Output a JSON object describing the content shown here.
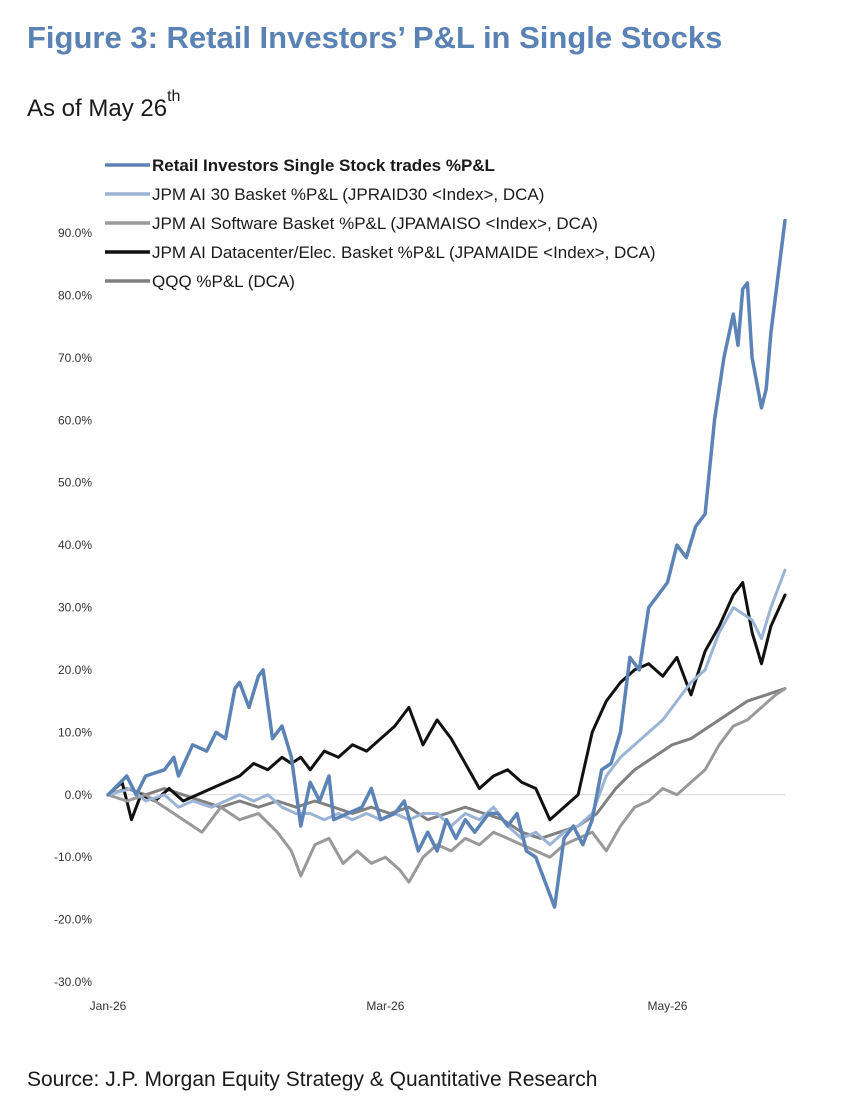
{
  "figure": {
    "title": "Figure 3: Retail Investors’ P&L in Single Stocks",
    "subtitle": "As of May 26",
    "subtitle_sup": "th",
    "source": "Source: J.P. Morgan Equity Strategy & Quantitative Research"
  },
  "chart_data": {
    "type": "line",
    "title": "",
    "xlabel": "",
    "ylabel": "",
    "xlim": [
      "2026-01-02",
      "2026-05-26"
    ],
    "ylim": [
      -30,
      90
    ],
    "yticks": [
      -30,
      -20,
      -10,
      0,
      10,
      20,
      30,
      40,
      50,
      60,
      70,
      80,
      90
    ],
    "ytick_labels": [
      "-30.0%",
      "-20.0%",
      "-10.0%",
      "0.0%",
      "10.0%",
      "20.0%",
      "30.0%",
      "40.0%",
      "50.0%",
      "60.0%",
      "70.0%",
      "80.0%",
      "90.0%"
    ],
    "xticks": [
      "2026-01-02",
      "2026-03-02",
      "2026-05-01"
    ],
    "xtick_labels": [
      "Jan-26",
      "Mar-26",
      "May-26"
    ],
    "grid": false,
    "zero_line": true,
    "legend": "top-left",
    "series": [
      {
        "name": "Retail Investors Single Stock trades %P&L",
        "color": "#5b83b5",
        "width": 3.5,
        "bold": true,
        "points": [
          [
            "2026-01-02",
            0
          ],
          [
            "2026-01-06",
            3
          ],
          [
            "2026-01-08",
            0
          ],
          [
            "2026-01-10",
            3
          ],
          [
            "2026-01-14",
            4
          ],
          [
            "2026-01-16",
            6
          ],
          [
            "2026-01-17",
            3
          ],
          [
            "2026-01-20",
            8
          ],
          [
            "2026-01-23",
            7
          ],
          [
            "2026-01-25",
            10
          ],
          [
            "2026-01-27",
            9
          ],
          [
            "2026-01-29",
            17
          ],
          [
            "2026-01-30",
            18
          ],
          [
            "2026-02-01",
            14
          ],
          [
            "2026-02-03",
            19
          ],
          [
            "2026-02-04",
            20
          ],
          [
            "2026-02-06",
            9
          ],
          [
            "2026-02-08",
            11
          ],
          [
            "2026-02-10",
            6
          ],
          [
            "2026-02-12",
            -5
          ],
          [
            "2026-02-14",
            2
          ],
          [
            "2026-02-16",
            -1
          ],
          [
            "2026-02-18",
            3
          ],
          [
            "2026-02-19",
            -4
          ],
          [
            "2026-02-22",
            -3
          ],
          [
            "2026-02-25",
            -2
          ],
          [
            "2026-02-27",
            1
          ],
          [
            "2026-03-01",
            -4
          ],
          [
            "2026-03-04",
            -3
          ],
          [
            "2026-03-06",
            -1
          ],
          [
            "2026-03-09",
            -9
          ],
          [
            "2026-03-11",
            -6
          ],
          [
            "2026-03-13",
            -9
          ],
          [
            "2026-03-15",
            -4
          ],
          [
            "2026-03-17",
            -7
          ],
          [
            "2026-03-19",
            -4
          ],
          [
            "2026-03-21",
            -6
          ],
          [
            "2026-03-24",
            -3
          ],
          [
            "2026-03-26",
            -3
          ],
          [
            "2026-03-28",
            -5
          ],
          [
            "2026-03-30",
            -3
          ],
          [
            "2026-04-01",
            -9
          ],
          [
            "2026-04-03",
            -10
          ],
          [
            "2026-04-05",
            -14
          ],
          [
            "2026-04-07",
            -18
          ],
          [
            "2026-04-09",
            -7
          ],
          [
            "2026-04-11",
            -5
          ],
          [
            "2026-04-13",
            -8
          ],
          [
            "2026-04-15",
            -4
          ],
          [
            "2026-04-17",
            4
          ],
          [
            "2026-04-19",
            5
          ],
          [
            "2026-04-21",
            10
          ],
          [
            "2026-04-23",
            22
          ],
          [
            "2026-04-25",
            20
          ],
          [
            "2026-04-27",
            30
          ],
          [
            "2026-04-29",
            32
          ],
          [
            "2026-05-01",
            34
          ],
          [
            "2026-05-03",
            40
          ],
          [
            "2026-05-05",
            38
          ],
          [
            "2026-05-07",
            43
          ],
          [
            "2026-05-09",
            45
          ],
          [
            "2026-05-11",
            60
          ],
          [
            "2026-05-13",
            70
          ],
          [
            "2026-05-15",
            77
          ],
          [
            "2026-05-16",
            72
          ],
          [
            "2026-05-17",
            81
          ],
          [
            "2026-05-18",
            82
          ],
          [
            "2026-05-19",
            70
          ],
          [
            "2026-05-21",
            62
          ],
          [
            "2026-05-22",
            65
          ],
          [
            "2026-05-23",
            74
          ],
          [
            "2026-05-26",
            92
          ]
        ]
      },
      {
        "name": "JPM AI 30 Basket %P&L (JPRAID30 <Index>, DCA)",
        "color": "#9bb4d6",
        "width": 3,
        "bold": false,
        "points": [
          [
            "2026-01-02",
            0
          ],
          [
            "2026-01-07",
            1
          ],
          [
            "2026-01-10",
            -1
          ],
          [
            "2026-01-14",
            0
          ],
          [
            "2026-01-17",
            -2
          ],
          [
            "2026-01-20",
            -1
          ],
          [
            "2026-01-24",
            -2
          ],
          [
            "2026-01-27",
            -1
          ],
          [
            "2026-01-30",
            0
          ],
          [
            "2026-02-02",
            -1
          ],
          [
            "2026-02-05",
            0
          ],
          [
            "2026-02-08",
            -2
          ],
          [
            "2026-02-11",
            -3
          ],
          [
            "2026-02-14",
            -3
          ],
          [
            "2026-02-17",
            -4
          ],
          [
            "2026-02-20",
            -3
          ],
          [
            "2026-02-23",
            -4
          ],
          [
            "2026-02-26",
            -3
          ],
          [
            "2026-03-01",
            -4
          ],
          [
            "2026-03-04",
            -3
          ],
          [
            "2026-03-07",
            -4
          ],
          [
            "2026-03-10",
            -3
          ],
          [
            "2026-03-13",
            -3
          ],
          [
            "2026-03-16",
            -5
          ],
          [
            "2026-03-19",
            -3
          ],
          [
            "2026-03-22",
            -4
          ],
          [
            "2026-03-25",
            -2
          ],
          [
            "2026-03-28",
            -5
          ],
          [
            "2026-03-31",
            -7
          ],
          [
            "2026-04-03",
            -6
          ],
          [
            "2026-04-06",
            -8
          ],
          [
            "2026-04-09",
            -6
          ],
          [
            "2026-04-12",
            -5
          ],
          [
            "2026-04-15",
            -3
          ],
          [
            "2026-04-18",
            3
          ],
          [
            "2026-04-21",
            6
          ],
          [
            "2026-04-24",
            8
          ],
          [
            "2026-04-27",
            10
          ],
          [
            "2026-04-30",
            12
          ],
          [
            "2026-05-03",
            15
          ],
          [
            "2026-05-06",
            18
          ],
          [
            "2026-05-09",
            20
          ],
          [
            "2026-05-12",
            26
          ],
          [
            "2026-05-15",
            30
          ],
          [
            "2026-05-17",
            29
          ],
          [
            "2026-05-19",
            28
          ],
          [
            "2026-05-21",
            25
          ],
          [
            "2026-05-23",
            30
          ],
          [
            "2026-05-26",
            36
          ]
        ]
      },
      {
        "name": "JPM AI Software Basket %P&L (JPAMAISO <Index>, DCA)",
        "color": "#999999",
        "width": 3,
        "bold": false,
        "points": [
          [
            "2026-01-02",
            0
          ],
          [
            "2026-01-06",
            -1
          ],
          [
            "2026-01-10",
            0
          ],
          [
            "2026-01-14",
            -2
          ],
          [
            "2026-01-18",
            -4
          ],
          [
            "2026-01-22",
            -6
          ],
          [
            "2026-01-26",
            -2
          ],
          [
            "2026-01-30",
            -4
          ],
          [
            "2026-02-03",
            -3
          ],
          [
            "2026-02-07",
            -6
          ],
          [
            "2026-02-10",
            -9
          ],
          [
            "2026-02-12",
            -13
          ],
          [
            "2026-02-15",
            -8
          ],
          [
            "2026-02-18",
            -7
          ],
          [
            "2026-02-21",
            -11
          ],
          [
            "2026-02-24",
            -9
          ],
          [
            "2026-02-27",
            -11
          ],
          [
            "2026-03-02",
            -10
          ],
          [
            "2026-03-05",
            -12
          ],
          [
            "2026-03-07",
            -14
          ],
          [
            "2026-03-10",
            -10
          ],
          [
            "2026-03-13",
            -8
          ],
          [
            "2026-03-16",
            -9
          ],
          [
            "2026-03-19",
            -7
          ],
          [
            "2026-03-22",
            -8
          ],
          [
            "2026-03-25",
            -6
          ],
          [
            "2026-03-28",
            -7
          ],
          [
            "2026-03-31",
            -8
          ],
          [
            "2026-04-03",
            -9
          ],
          [
            "2026-04-06",
            -10
          ],
          [
            "2026-04-09",
            -8
          ],
          [
            "2026-04-12",
            -7
          ],
          [
            "2026-04-15",
            -6
          ],
          [
            "2026-04-18",
            -9
          ],
          [
            "2026-04-21",
            -5
          ],
          [
            "2026-04-24",
            -2
          ],
          [
            "2026-04-27",
            -1
          ],
          [
            "2026-04-30",
            1
          ],
          [
            "2026-05-03",
            0
          ],
          [
            "2026-05-06",
            2
          ],
          [
            "2026-05-09",
            4
          ],
          [
            "2026-05-12",
            8
          ],
          [
            "2026-05-15",
            11
          ],
          [
            "2026-05-18",
            12
          ],
          [
            "2026-05-21",
            14
          ],
          [
            "2026-05-24",
            16
          ],
          [
            "2026-05-26",
            17
          ]
        ]
      },
      {
        "name": "JPM AI Datacenter/Elec. Basket %P&L (JPAMAIDE <Index>, DCA)",
        "color": "#111111",
        "width": 3,
        "bold": false,
        "points": [
          [
            "2026-01-02",
            0
          ],
          [
            "2026-01-05",
            2
          ],
          [
            "2026-01-07",
            -4
          ],
          [
            "2026-01-09",
            0
          ],
          [
            "2026-01-12",
            -1
          ],
          [
            "2026-01-15",
            1
          ],
          [
            "2026-01-18",
            -1
          ],
          [
            "2026-01-21",
            0
          ],
          [
            "2026-01-24",
            1
          ],
          [
            "2026-01-27",
            2
          ],
          [
            "2026-01-30",
            3
          ],
          [
            "2026-02-02",
            5
          ],
          [
            "2026-02-05",
            4
          ],
          [
            "2026-02-08",
            6
          ],
          [
            "2026-02-10",
            5
          ],
          [
            "2026-02-12",
            6
          ],
          [
            "2026-02-14",
            4
          ],
          [
            "2026-02-17",
            7
          ],
          [
            "2026-02-20",
            6
          ],
          [
            "2026-02-23",
            8
          ],
          [
            "2026-02-26",
            7
          ],
          [
            "2026-03-01",
            9
          ],
          [
            "2026-03-04",
            11
          ],
          [
            "2026-03-07",
            14
          ],
          [
            "2026-03-10",
            8
          ],
          [
            "2026-03-13",
            12
          ],
          [
            "2026-03-16",
            9
          ],
          [
            "2026-03-19",
            5
          ],
          [
            "2026-03-22",
            1
          ],
          [
            "2026-03-25",
            3
          ],
          [
            "2026-03-28",
            4
          ],
          [
            "2026-03-31",
            2
          ],
          [
            "2026-04-03",
            1
          ],
          [
            "2026-04-06",
            -4
          ],
          [
            "2026-04-09",
            -2
          ],
          [
            "2026-04-12",
            0
          ],
          [
            "2026-04-15",
            10
          ],
          [
            "2026-04-18",
            15
          ],
          [
            "2026-04-21",
            18
          ],
          [
            "2026-04-24",
            20
          ],
          [
            "2026-04-27",
            21
          ],
          [
            "2026-04-30",
            19
          ],
          [
            "2026-05-03",
            22
          ],
          [
            "2026-05-06",
            16
          ],
          [
            "2026-05-09",
            23
          ],
          [
            "2026-05-12",
            27
          ],
          [
            "2026-05-15",
            32
          ],
          [
            "2026-05-17",
            34
          ],
          [
            "2026-05-19",
            26
          ],
          [
            "2026-05-21",
            21
          ],
          [
            "2026-05-23",
            27
          ],
          [
            "2026-05-26",
            32
          ]
        ]
      },
      {
        "name": "QQQ %P&L (DCA)",
        "color": "#808080",
        "width": 3,
        "bold": false,
        "points": [
          [
            "2026-01-02",
            0
          ],
          [
            "2026-01-06",
            1
          ],
          [
            "2026-01-10",
            0
          ],
          [
            "2026-01-14",
            1
          ],
          [
            "2026-01-18",
            0
          ],
          [
            "2026-01-22",
            -1
          ],
          [
            "2026-01-26",
            -2
          ],
          [
            "2026-01-30",
            -1
          ],
          [
            "2026-02-03",
            -2
          ],
          [
            "2026-02-07",
            -1
          ],
          [
            "2026-02-11",
            -2
          ],
          [
            "2026-02-15",
            -1
          ],
          [
            "2026-02-19",
            -2
          ],
          [
            "2026-02-23",
            -3
          ],
          [
            "2026-02-27",
            -2
          ],
          [
            "2026-03-03",
            -3
          ],
          [
            "2026-03-07",
            -2
          ],
          [
            "2026-03-11",
            -4
          ],
          [
            "2026-03-15",
            -3
          ],
          [
            "2026-03-19",
            -2
          ],
          [
            "2026-03-23",
            -3
          ],
          [
            "2026-03-27",
            -4
          ],
          [
            "2026-03-31",
            -6
          ],
          [
            "2026-04-04",
            -7
          ],
          [
            "2026-04-08",
            -6
          ],
          [
            "2026-04-12",
            -5
          ],
          [
            "2026-04-16",
            -3
          ],
          [
            "2026-04-20",
            1
          ],
          [
            "2026-04-24",
            4
          ],
          [
            "2026-04-28",
            6
          ],
          [
            "2026-05-02",
            8
          ],
          [
            "2026-05-06",
            9
          ],
          [
            "2026-05-10",
            11
          ],
          [
            "2026-05-14",
            13
          ],
          [
            "2026-05-18",
            15
          ],
          [
            "2026-05-22",
            16
          ],
          [
            "2026-05-26",
            17
          ]
        ]
      }
    ]
  }
}
